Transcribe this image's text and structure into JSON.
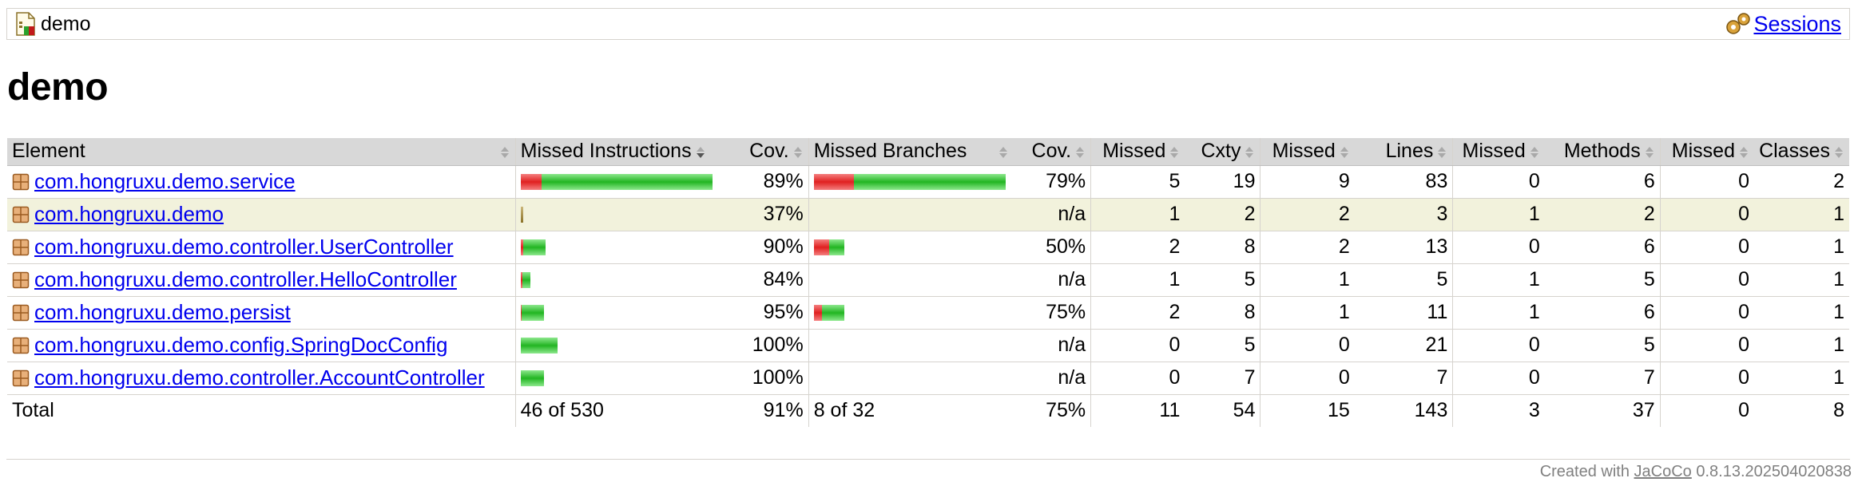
{
  "breadcrumb": {
    "report_name": "demo",
    "sessions_link": "Sessions"
  },
  "page_title": "demo",
  "table": {
    "headers": {
      "element": "Element",
      "missed_instructions": "Missed Instructions",
      "instr_cov": "Cov.",
      "missed_branches": "Missed Branches",
      "branch_cov": "Cov.",
      "missed_cxty": "Missed",
      "cxty": "Cxty",
      "missed_lines": "Missed",
      "lines": "Lines",
      "missed_methods": "Missed",
      "methods": "Methods",
      "missed_classes": "Missed",
      "classes": "Classes"
    },
    "rows": [
      {
        "name": "com.hongruxu.demo.service",
        "instr_missed_fraction": 0.11,
        "instr_bar_scale": 1.0,
        "instr_cov": "89%",
        "branch_missed_fraction": 0.21,
        "branch_bar_scale": 1.0,
        "branch_cov": "79%",
        "missed_cxty": "5",
        "cxty": "19",
        "missed_lines": "9",
        "lines": "83",
        "missed_methods": "0",
        "methods": "6",
        "missed_classes": "0",
        "classes": "2",
        "highlight": false
      },
      {
        "name": "com.hongruxu.demo",
        "instr_missed_fraction": 0.63,
        "instr_bar_scale": 0.0,
        "instr_cov": "37%",
        "branch_missed_fraction": null,
        "branch_bar_scale": 0,
        "branch_cov": "n/a",
        "missed_cxty": "1",
        "cxty": "2",
        "missed_lines": "2",
        "lines": "3",
        "missed_methods": "1",
        "methods": "2",
        "missed_classes": "0",
        "classes": "1",
        "highlight": true
      },
      {
        "name": "com.hongruxu.demo.controller.UserController",
        "instr_missed_fraction": 0.1,
        "instr_bar_scale": 0.13,
        "instr_cov": "90%",
        "branch_missed_fraction": 0.5,
        "branch_bar_scale": 0.16,
        "branch_cov": "50%",
        "missed_cxty": "2",
        "cxty": "8",
        "missed_lines": "2",
        "lines": "13",
        "missed_methods": "0",
        "methods": "6",
        "missed_classes": "0",
        "classes": "1",
        "highlight": false
      },
      {
        "name": "com.hongruxu.demo.controller.HelloController",
        "instr_missed_fraction": 0.16,
        "instr_bar_scale": 0.05,
        "instr_cov": "84%",
        "branch_missed_fraction": null,
        "branch_bar_scale": 0,
        "branch_cov": "n/a",
        "missed_cxty": "1",
        "cxty": "5",
        "missed_lines": "1",
        "lines": "5",
        "missed_methods": "1",
        "methods": "5",
        "missed_classes": "0",
        "classes": "1",
        "highlight": false
      },
      {
        "name": "com.hongruxu.demo.persist",
        "instr_missed_fraction": 0.05,
        "instr_bar_scale": 0.12,
        "instr_cov": "95%",
        "branch_missed_fraction": 0.25,
        "branch_bar_scale": 0.16,
        "branch_cov": "75%",
        "missed_cxty": "2",
        "cxty": "8",
        "missed_lines": "1",
        "lines": "11",
        "missed_methods": "1",
        "methods": "6",
        "missed_classes": "0",
        "classes": "1",
        "highlight": false
      },
      {
        "name": "com.hongruxu.demo.config.SpringDocConfig",
        "instr_missed_fraction": 0.0,
        "instr_bar_scale": 0.19,
        "instr_cov": "100%",
        "branch_missed_fraction": null,
        "branch_bar_scale": 0,
        "branch_cov": "n/a",
        "missed_cxty": "0",
        "cxty": "5",
        "missed_lines": "0",
        "lines": "21",
        "missed_methods": "0",
        "methods": "5",
        "missed_classes": "0",
        "classes": "1",
        "highlight": false
      },
      {
        "name": "com.hongruxu.demo.controller.AccountController",
        "instr_missed_fraction": 0.0,
        "instr_bar_scale": 0.12,
        "instr_cov": "100%",
        "branch_missed_fraction": null,
        "branch_bar_scale": 0,
        "branch_cov": "n/a",
        "missed_cxty": "0",
        "cxty": "7",
        "missed_lines": "0",
        "lines": "7",
        "missed_methods": "0",
        "methods": "7",
        "missed_classes": "0",
        "classes": "1",
        "highlight": false
      }
    ],
    "total": {
      "label": "Total",
      "instr": "46 of 530",
      "instr_cov": "91%",
      "branches": "8 of 32",
      "branch_cov": "75%",
      "missed_cxty": "11",
      "cxty": "54",
      "missed_lines": "15",
      "lines": "143",
      "missed_methods": "3",
      "methods": "37",
      "missed_classes": "0",
      "classes": "8"
    }
  },
  "footer": {
    "prefix": "Created with",
    "tool": "JaCoCo",
    "version": "0.8.13.202504020838"
  },
  "colors": {
    "missed": "#e02020",
    "covered": "#22b522",
    "highlight_row": "#f2f2dc",
    "header_bg": "#d8d8d8",
    "link": "#0000ee"
  },
  "icons": {
    "report": "report-icon",
    "sessions": "gears-icon",
    "package": "package-icon",
    "sort": "sort-icon",
    "sort_down": "sort-down-icon"
  }
}
